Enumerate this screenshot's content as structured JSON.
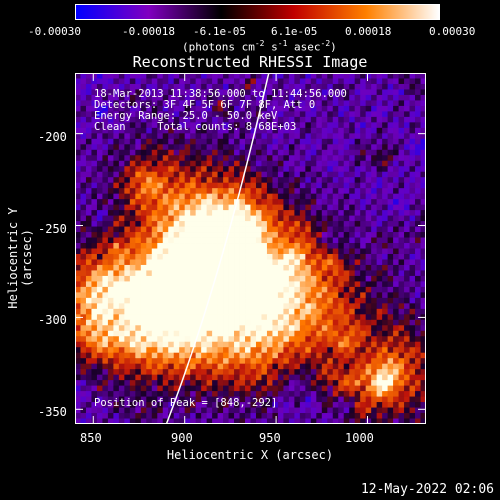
{
  "colorbar": {
    "ticks": [
      "-0.00030",
      "-0.00018",
      "-6.1e-05",
      "6.1e-05",
      "0.00018",
      "0.00030"
    ],
    "unit": "(photons cm",
    "unit_exp1": "-2",
    "unit_mid": " s",
    "unit_exp2": "-1",
    "unit_mid2": " asec",
    "unit_exp3": "-2",
    "unit_end": ")",
    "colors": [
      "#0000ff",
      "#8000c0",
      "#000000",
      "#c00000",
      "#ff8000",
      "#ffffff"
    ]
  },
  "chart_data": {
    "type": "heatmap",
    "title": "Reconstructed RHESSI Image",
    "xlabel": "Heliocentric X (arcsec)",
    "ylabel": "Heliocentric Y (arcsec)",
    "xlim": [
      840,
      1032
    ],
    "ylim": [
      -358,
      -167
    ],
    "x_ticks": [
      "850",
      "900",
      "950",
      "1000"
    ],
    "y_ticks": [
      "-200",
      "-250",
      "-300",
      "-350"
    ],
    "annotations": {
      "time": "18-Mar-2013 11:38:56.000 to 11:44:56.000",
      "detectors": "Detectors: 3F 4F 5F 6F 7F 8F, Att 0",
      "energy": "Energy Range: 25.0 - 50.0 keV",
      "clean": "Clean     Total counts: 8.68E+03",
      "peak": "Position of Peak = [848,-292]"
    },
    "limb_curve": [
      [
        890,
        -358
      ],
      [
        920,
        -280
      ],
      [
        946,
        -167
      ]
    ],
    "peak": [
      848,
      -292
    ]
  },
  "footer": {
    "date": "12-May-2022 02:06"
  }
}
